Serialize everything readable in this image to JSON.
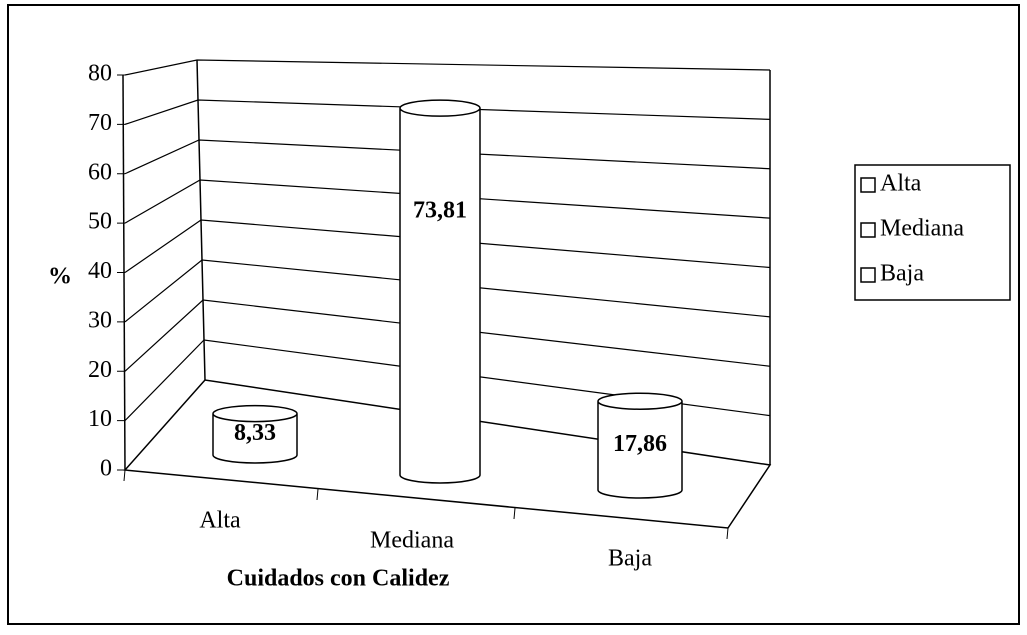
{
  "chart_data": {
    "type": "bar",
    "categories": [
      "Alta",
      "Mediana",
      "Baja"
    ],
    "values": [
      8.33,
      73.81,
      17.86
    ],
    "value_labels": [
      "8,33",
      "73,81",
      "17,86"
    ],
    "color": "#ffffff",
    "ylim": [
      0,
      80
    ],
    "yticks": [
      0,
      10,
      20,
      30,
      40,
      50,
      60,
      70,
      80
    ],
    "y_label": "%",
    "x_label": "Cuidados con Calidez",
    "grid": true,
    "legend": "right"
  }
}
